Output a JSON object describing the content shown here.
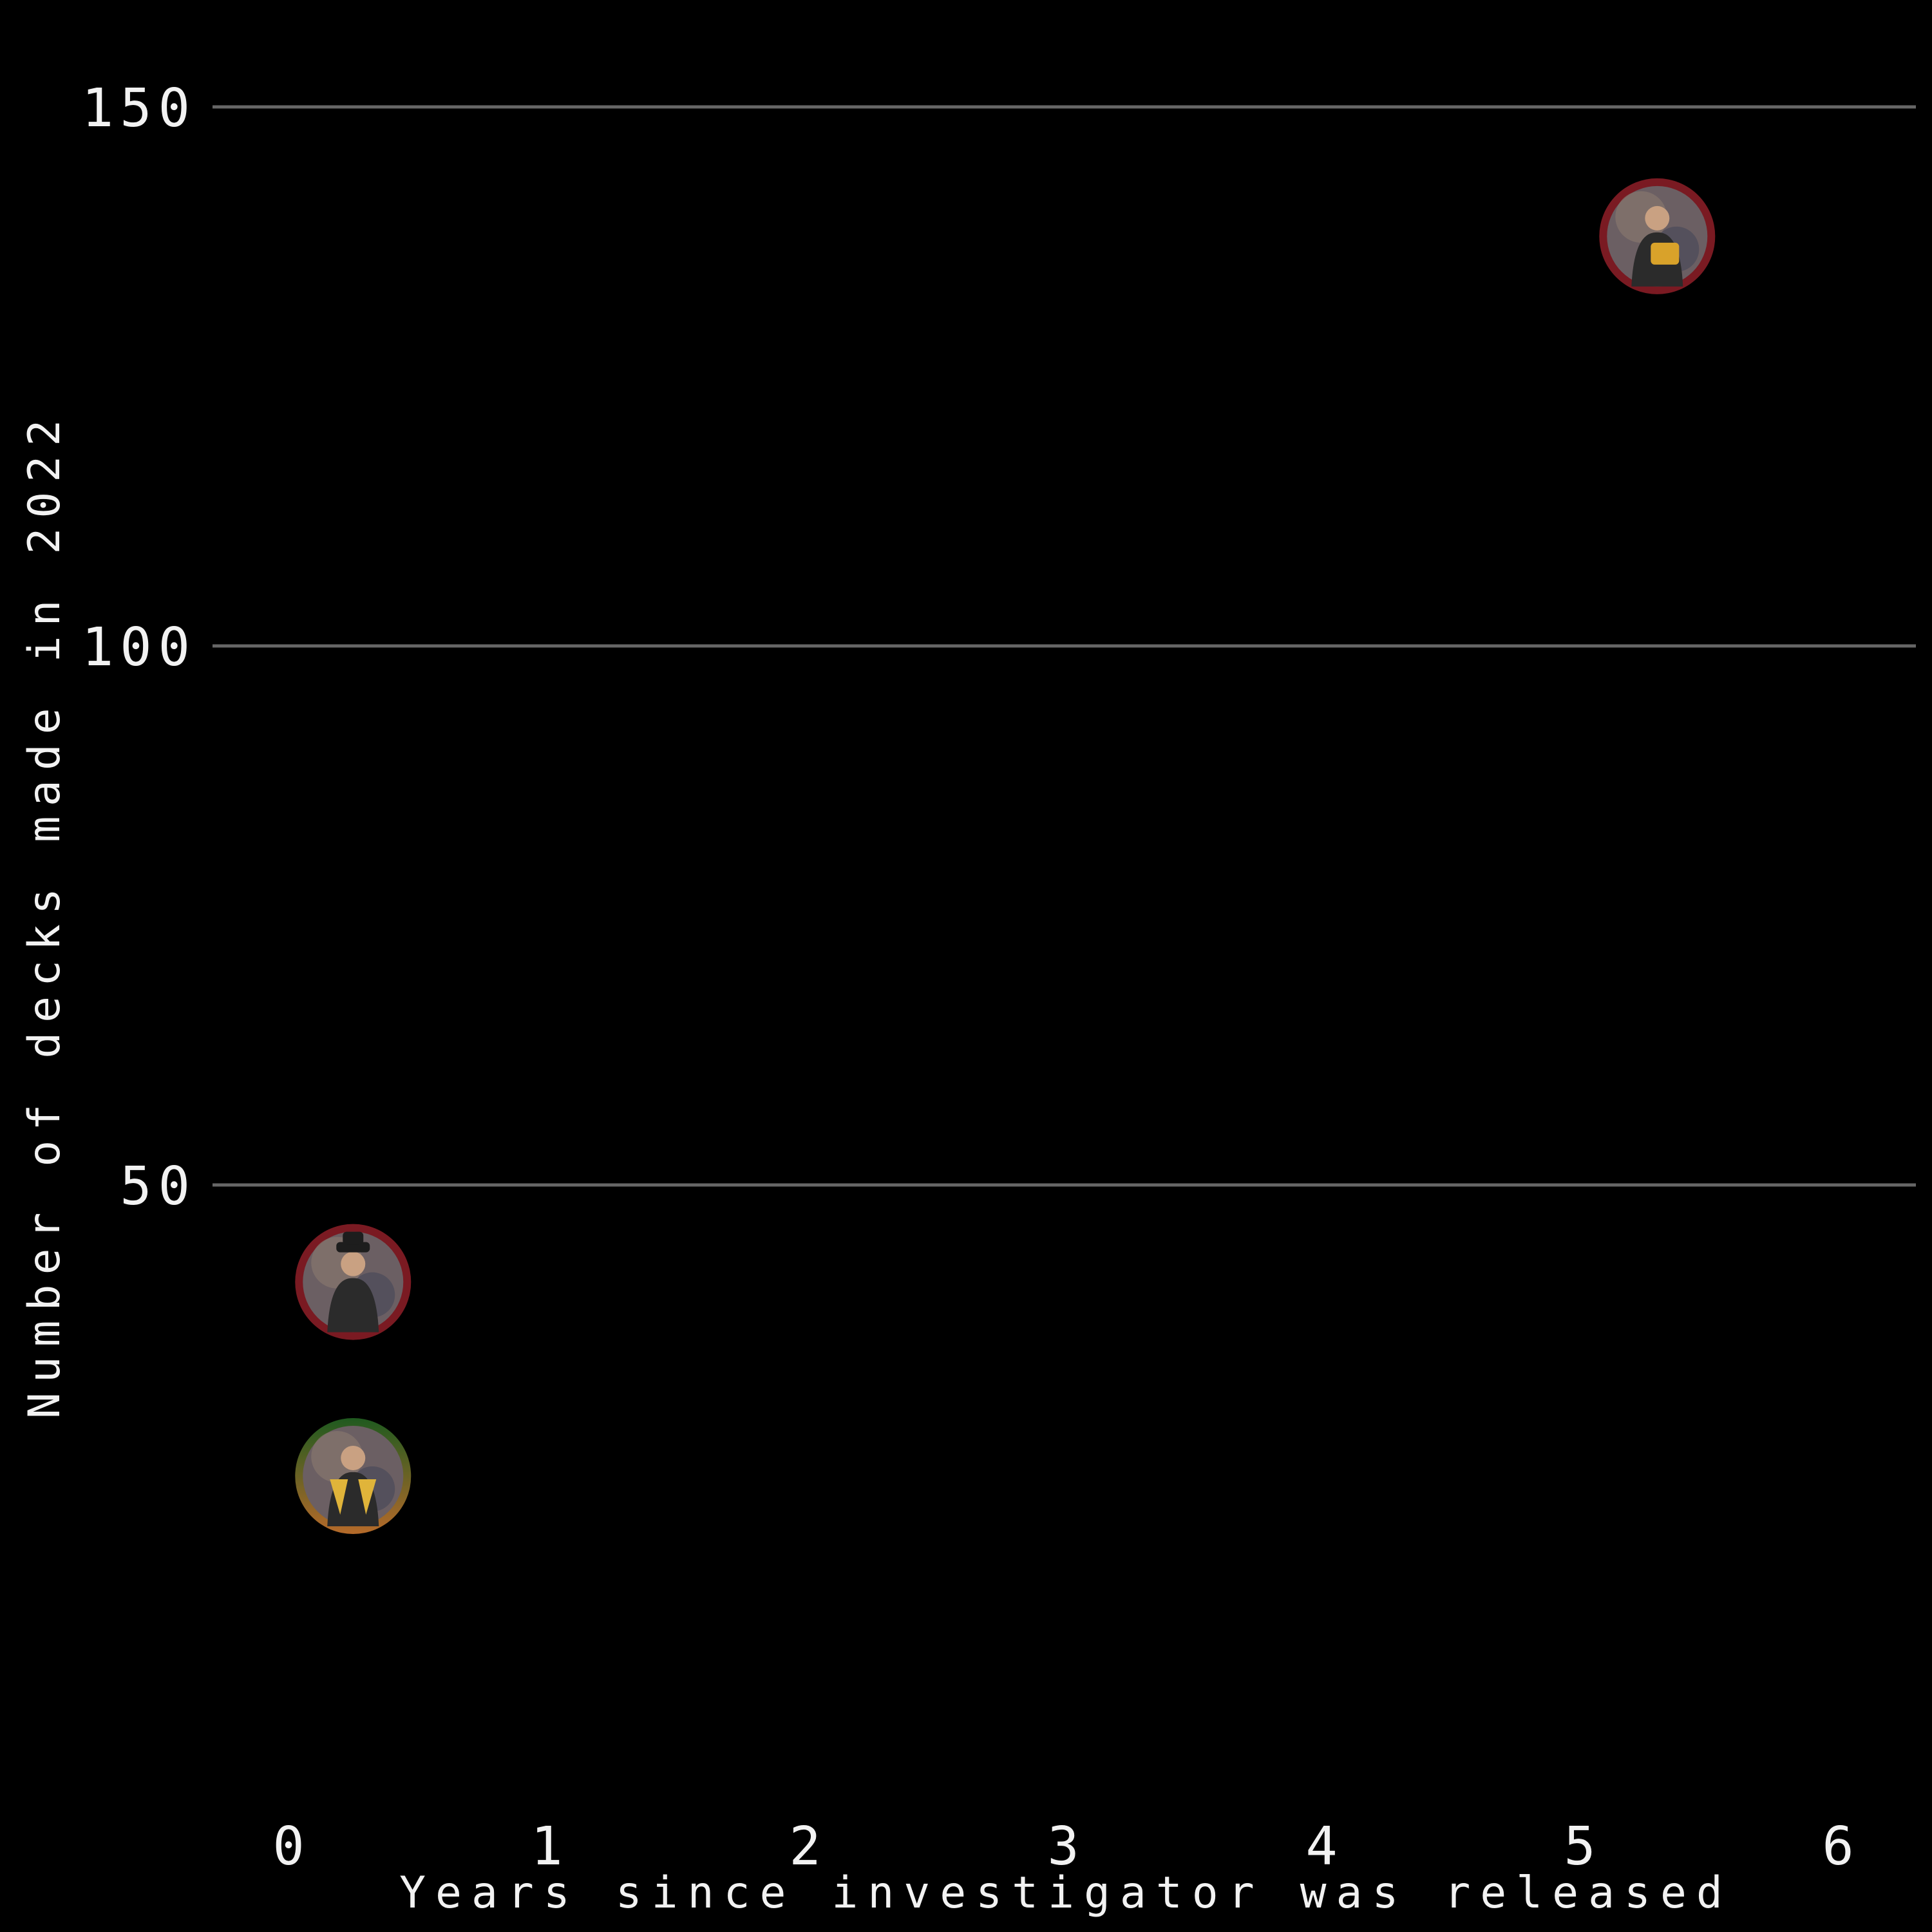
{
  "chart_data": {
    "type": "scatter",
    "title": "",
    "xlabel": "Years since investigator was released",
    "ylabel": "Number of decks made in 2022",
    "xlim": [
      -0.3,
      6.3
    ],
    "ylim": [
      -5,
      158
    ],
    "x_ticks": [
      0,
      1,
      2,
      3,
      4,
      5,
      6
    ],
    "y_ticks": [
      50,
      100,
      150
    ],
    "grid": "horizontal",
    "legend": "none",
    "points": [
      {
        "x": 5.3,
        "y": 138,
        "icon": "investigator-portrait-guardian-icon",
        "ring": [
          "#7a1a22",
          "#7a1a22"
        ]
      },
      {
        "x": 0.25,
        "y": 41,
        "icon": "investigator-portrait-fedora-icon",
        "ring": [
          "#7a1a22",
          "#7a1a22"
        ]
      },
      {
        "x": 0.25,
        "y": 23,
        "icon": "investigator-portrait-multiclass-icon",
        "ring": [
          "#1f5a1f",
          "#b56a2a"
        ]
      }
    ]
  }
}
